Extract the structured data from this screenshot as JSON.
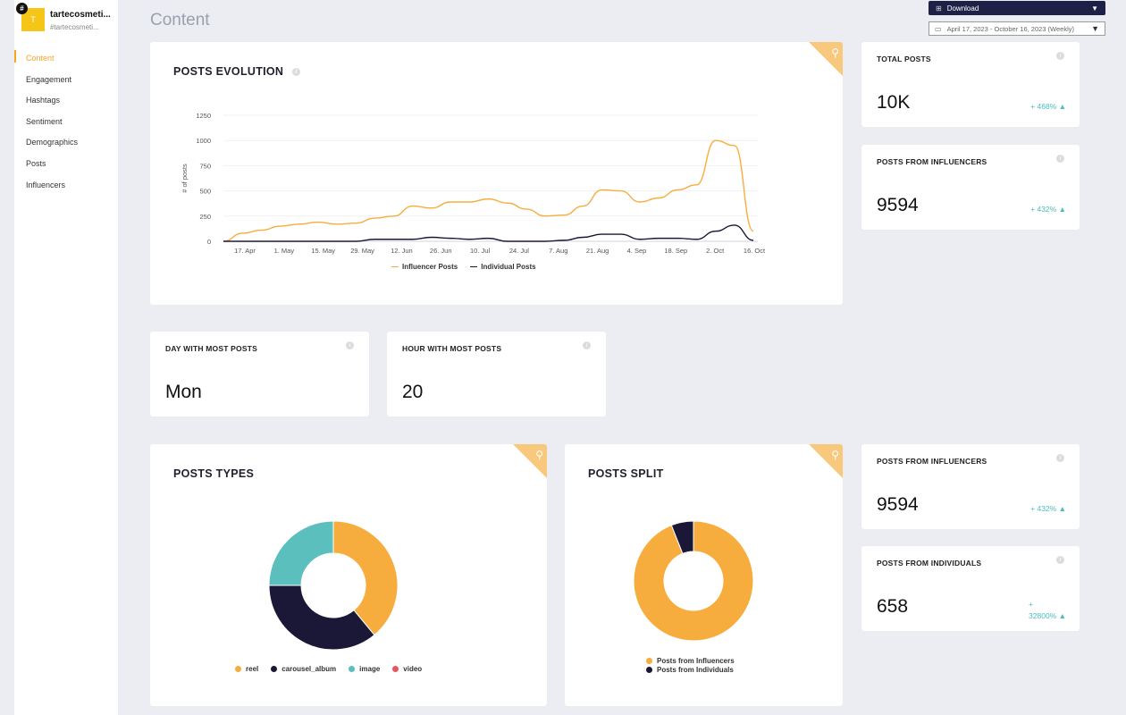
{
  "brand": {
    "logo_letter": "T",
    "hash": "#",
    "name": "tartecosmeti...",
    "handle": "#tartecosmeti..."
  },
  "nav": {
    "items": [
      "Content",
      "Engagement",
      "Hashtags",
      "Sentiment",
      "Demographics",
      "Posts",
      "Influencers"
    ],
    "active": "Content"
  },
  "page_title": "Content",
  "toolbar": {
    "download_label": "Download",
    "date_range": "April 17, 2023 - October 16, 2023 (Weekly)"
  },
  "colors": {
    "accent": "#f5a623",
    "navy": "#1a1836",
    "teal": "#4bbdbd",
    "red": "#e8545f",
    "orange_series": "#f7ad3e"
  },
  "posts_evolution": {
    "title": "POSTS EVOLUTION",
    "chart_data": {
      "type": "line",
      "ylabel": "# of posts",
      "ylim": [
        0,
        1250
      ],
      "yticks": [
        "0",
        "250",
        "500",
        "750",
        "1000",
        "1250"
      ],
      "xtick_labels": [
        "17. Apr",
        "1. May",
        "15. May",
        "29. May",
        "12. Jun",
        "26. Jun",
        "10. Jul",
        "24. Jul",
        "7. Aug",
        "21. Aug",
        "4. Sep",
        "18. Sep",
        "2. Oct",
        "16. Oct"
      ],
      "series": [
        {
          "name": "Influencer Posts",
          "color": "#f7ad3e",
          "values": [
            0,
            80,
            110,
            150,
            170,
            190,
            170,
            180,
            230,
            250,
            350,
            330,
            390,
            390,
            420,
            380,
            320,
            250,
            260,
            350,
            510,
            500,
            390,
            430,
            510,
            560,
            1000,
            950,
            100
          ]
        },
        {
          "name": "Individual Posts",
          "color": "#1a1836",
          "values": [
            0,
            0,
            0,
            0,
            0,
            0,
            0,
            0,
            20,
            20,
            20,
            40,
            30,
            20,
            30,
            0,
            0,
            0,
            10,
            40,
            70,
            70,
            20,
            30,
            30,
            20,
            100,
            160,
            10
          ]
        }
      ]
    }
  },
  "stats_top": [
    {
      "label": "TOTAL POSTS",
      "value": "10K",
      "change": "+ 468% ▲"
    },
    {
      "label": "POSTS FROM INFLUENCERS",
      "value": "9594",
      "change": "+ 432% ▲"
    }
  ],
  "stats_mid": [
    {
      "label": "DAY WITH MOST POSTS",
      "value": "Mon"
    },
    {
      "label": "HOUR WITH MOST POSTS",
      "value": "20"
    }
  ],
  "posts_types": {
    "title": "POSTS TYPES",
    "chart_data": {
      "type": "pie",
      "slices": [
        {
          "name": "reel",
          "value": 39,
          "color": "#f7ad3e"
        },
        {
          "name": "carousel_album",
          "value": 36,
          "color": "#1a1836"
        },
        {
          "name": "image",
          "value": 25,
          "color": "#5bbfbd"
        },
        {
          "name": "video",
          "value": 0,
          "color": "#e8545f"
        }
      ]
    }
  },
  "posts_split": {
    "title": "POSTS SPLIT",
    "chart_data": {
      "type": "pie",
      "slices": [
        {
          "name": "Posts from Influencers",
          "value": 94,
          "color": "#f7ad3e"
        },
        {
          "name": "Posts from Individuals",
          "value": 6,
          "color": "#1a1836"
        }
      ]
    }
  },
  "stats_bottom": [
    {
      "label": "POSTS FROM INFLUENCERS",
      "value": "9594",
      "change": "+ 432% ▲"
    },
    {
      "label": "POSTS FROM INDIVIDUALS",
      "value": "658",
      "change_line1": "+",
      "change_line2": "32800% ▲"
    }
  ],
  "icons": {
    "info": "info-icon",
    "zoom": "magnifier-icon",
    "download": "download-icon",
    "calendar": "calendar-icon"
  }
}
